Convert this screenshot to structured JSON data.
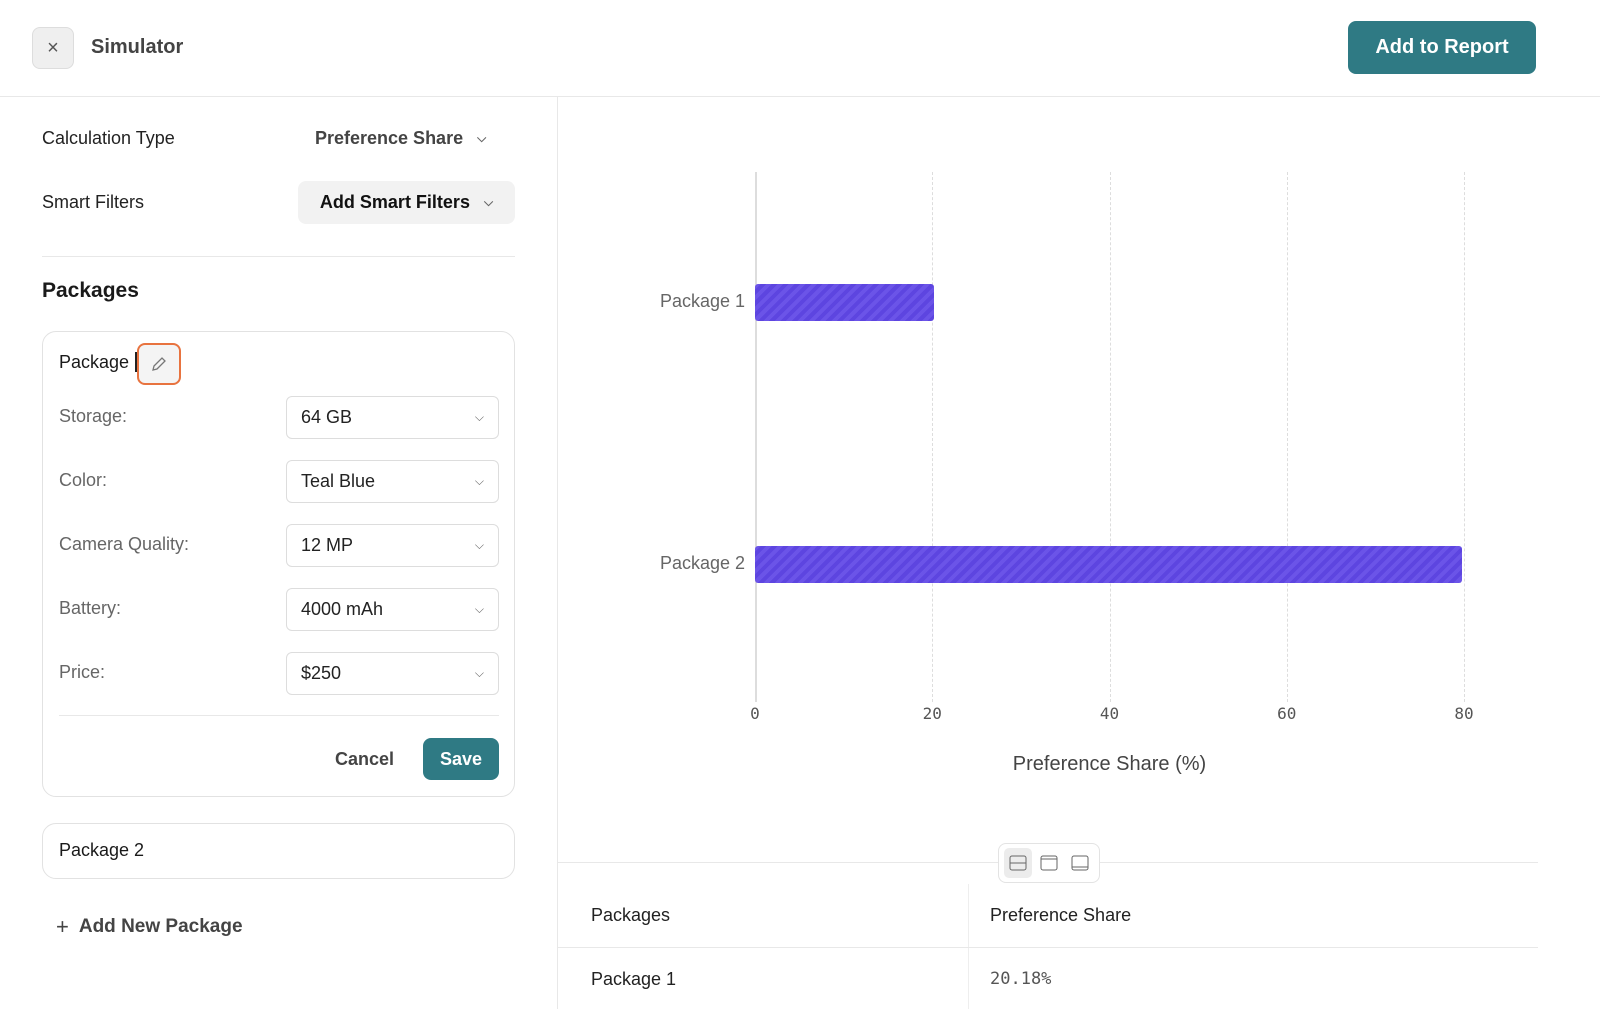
{
  "header": {
    "title": "Simulator",
    "add_to_report": "Add to Report",
    "close_icon": "close-icon"
  },
  "settings": {
    "calc_label": "Calculation Type",
    "calc_value": "Preference Share",
    "filters_label": "Smart Filters",
    "filters_value": "Add Smart Filters"
  },
  "packages": {
    "heading": "Packages",
    "package1": {
      "name": "Package 1",
      "name_editing": "Package ",
      "fields": [
        {
          "label": "Storage:",
          "value": "64 GB"
        },
        {
          "label": "Color:",
          "value": "Teal Blue"
        },
        {
          "label": "Camera Quality:",
          "value": "12 MP"
        },
        {
          "label": "Battery:",
          "value": "4000 mAh"
        },
        {
          "label": "Price:",
          "value": "$250"
        }
      ],
      "cancel": "Cancel",
      "save": "Save"
    },
    "package2": {
      "name": "Package 2"
    },
    "add_new": "Add New Package"
  },
  "chart_data": {
    "type": "bar",
    "orientation": "horizontal",
    "categories": [
      "Package 1",
      "Package 2"
    ],
    "values": [
      20.18,
      79.82
    ],
    "xlabel": "Preference Share (%)",
    "ylabel": "",
    "xlim": [
      0,
      80
    ],
    "xticks": [
      "0",
      "20",
      "40",
      "60",
      "80"
    ],
    "grid": true,
    "bar_color": "#6b54e8"
  },
  "table": {
    "headers": [
      "Packages",
      "Preference Share"
    ],
    "rows": [
      [
        "Package 1",
        "20.18%"
      ]
    ]
  }
}
